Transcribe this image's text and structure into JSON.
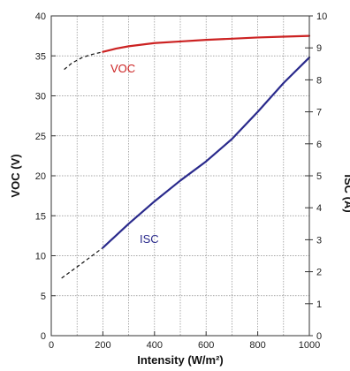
{
  "chart_data": {
    "type": "line",
    "title": "",
    "xlabel": "Intensity (W/m²)",
    "ylabel": "VOC (V)",
    "y2label": "ISC (A)",
    "xlim": [
      0,
      1000
    ],
    "ylim": [
      0,
      40
    ],
    "y2lim": [
      0,
      10
    ],
    "grid": true,
    "x_ticks": [
      0,
      200,
      400,
      600,
      800,
      1000
    ],
    "y_ticks": [
      0,
      5,
      10,
      15,
      20,
      25,
      30,
      35,
      40
    ],
    "y2_ticks": [
      0,
      1,
      2,
      3,
      4,
      5,
      6,
      7,
      8,
      9,
      10
    ],
    "series": [
      {
        "name": "VOC",
        "axis": "left",
        "color": "#cc2222",
        "x": [
          200,
          250,
          300,
          400,
          500,
          600,
          700,
          800,
          900,
          1000
        ],
        "y": [
          35.5,
          35.9,
          36.2,
          36.6,
          36.8,
          37.0,
          37.15,
          37.3,
          37.4,
          37.5
        ],
        "extrapolated": {
          "x": [
            50,
            80,
            120,
            160,
            200
          ],
          "y": [
            33.3,
            34.1,
            34.8,
            35.2,
            35.5
          ]
        }
      },
      {
        "name": "ISC",
        "axis": "right",
        "color": "#2a2a8c",
        "x": [
          200,
          300,
          400,
          500,
          600,
          700,
          800,
          900,
          1000
        ],
        "y": [
          2.75,
          3.5,
          4.2,
          4.85,
          5.45,
          6.15,
          7.0,
          7.9,
          8.7
        ],
        "extrapolated": {
          "x": [
            40,
            100,
            150,
            200
          ],
          "y": [
            1.8,
            2.15,
            2.45,
            2.75
          ]
        }
      }
    ]
  }
}
